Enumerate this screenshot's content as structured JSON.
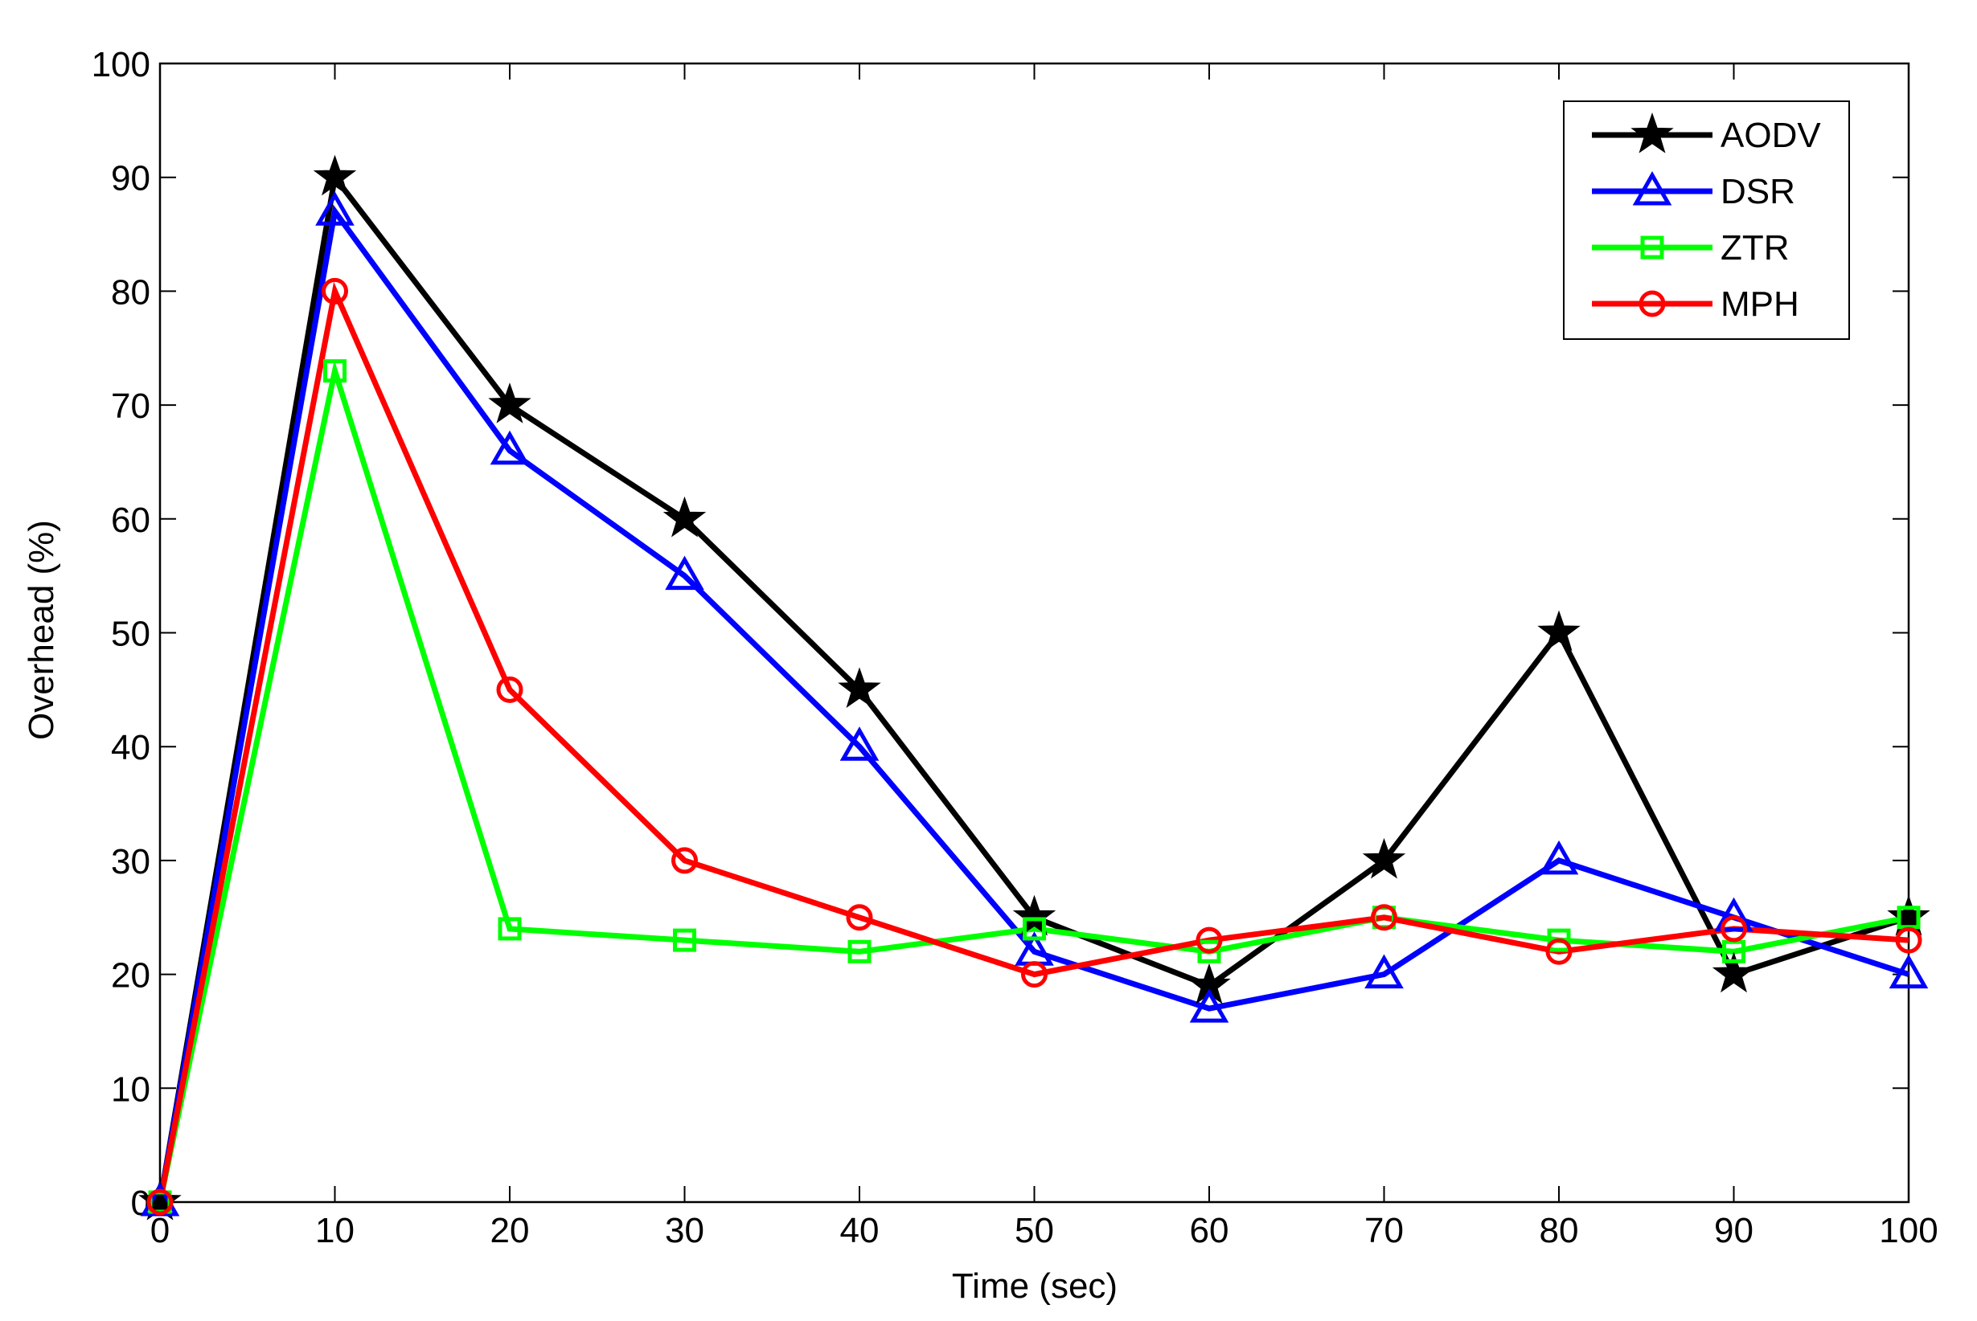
{
  "chart_data": {
    "type": "line",
    "title": "",
    "xlabel": "Time (sec)",
    "ylabel": "Overhead (%)",
    "xlim": [
      0,
      100
    ],
    "ylim": [
      0,
      100
    ],
    "xticks": [
      0,
      10,
      20,
      30,
      40,
      50,
      60,
      70,
      80,
      90,
      100
    ],
    "yticks": [
      0,
      10,
      20,
      30,
      40,
      50,
      60,
      70,
      80,
      90,
      100
    ],
    "grid": false,
    "legend_position": "top-right",
    "x": [
      0,
      10,
      20,
      30,
      40,
      50,
      60,
      70,
      80,
      90,
      100
    ],
    "series": [
      {
        "name": "AODV",
        "color": "#000000",
        "marker": "star",
        "values": [
          0,
          90,
          70,
          60,
          45,
          25,
          19,
          30,
          50,
          20,
          25
        ]
      },
      {
        "name": "DSR",
        "color": "#0000ff",
        "marker": "triangle",
        "values": [
          0,
          87,
          66,
          55,
          40,
          22,
          17,
          20,
          30,
          25,
          20
        ]
      },
      {
        "name": "ZTR",
        "color": "#00ff00",
        "marker": "square",
        "values": [
          0,
          73,
          24,
          23,
          22,
          24,
          22,
          25,
          23,
          22,
          25
        ]
      },
      {
        "name": "MPH",
        "color": "#ff0000",
        "marker": "circle",
        "values": [
          0,
          80,
          45,
          30,
          25,
          20,
          23,
          25,
          22,
          24,
          23
        ]
      }
    ]
  }
}
